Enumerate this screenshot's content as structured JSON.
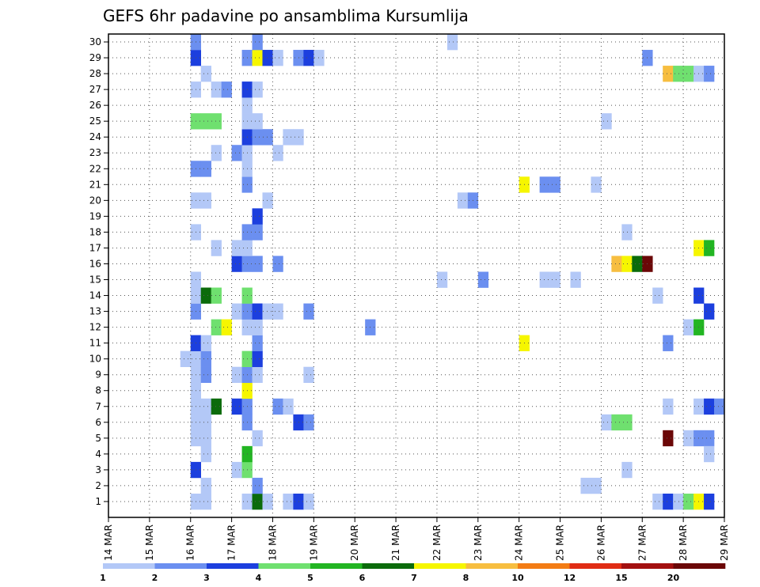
{
  "chart_data": {
    "type": "heatmap",
    "title": "GEFS 6hr padavine po ansamblima Kursumlija",
    "x_labels": [
      "14 MAR",
      "15 MAR",
      "16 MAR",
      "17 MAR",
      "18 MAR",
      "19 MAR",
      "20 MAR",
      "21 MAR",
      "22 MAR",
      "23 MAR",
      "24 MAR",
      "25 MAR",
      "26 MAR",
      "27 MAR",
      "28 MAR",
      "29 MAR"
    ],
    "y_labels": [
      "1",
      "2",
      "3",
      "4",
      "5",
      "6",
      "7",
      "8",
      "9",
      "10",
      "11",
      "12",
      "13",
      "14",
      "15",
      "16",
      "17",
      "18",
      "19",
      "20",
      "21",
      "22",
      "23",
      "24",
      "25",
      "26",
      "27",
      "28",
      "29",
      "30"
    ],
    "steps_per_day": 4,
    "grid": true,
    "legend_position": "bottom",
    "legend_labels": [
      "1",
      "2",
      "3",
      "4",
      "5",
      "6",
      "7",
      "8",
      "10",
      "12",
      "15",
      "20"
    ],
    "palette": [
      "#b3c8f7",
      "#6b8ff0",
      "#1c3fde",
      "#6fe06f",
      "#22b522",
      "#0b6b0b",
      "#f6f600",
      "#f7be40",
      "#f37c14",
      "#e02c14",
      "#a31010",
      "#6b0707"
    ],
    "cells": [
      [
        16.0,
        1,
        0
      ],
      [
        16.25,
        1,
        0
      ],
      [
        16.25,
        2,
        0
      ],
      [
        16.0,
        3,
        2
      ],
      [
        16.25,
        4,
        0
      ],
      [
        16.0,
        5,
        0
      ],
      [
        16.25,
        5,
        0
      ],
      [
        16.0,
        6,
        0
      ],
      [
        16.25,
        6,
        0
      ],
      [
        16.0,
        7,
        0
      ],
      [
        16.25,
        7,
        0
      ],
      [
        16.5,
        7,
        5
      ],
      [
        16.0,
        8,
        0
      ],
      [
        16.0,
        9,
        0
      ],
      [
        16.25,
        9,
        1
      ],
      [
        15.75,
        10,
        0
      ],
      [
        16.0,
        10,
        0
      ],
      [
        16.25,
        10,
        1
      ],
      [
        16.0,
        11,
        2
      ],
      [
        16.25,
        11,
        0
      ],
      [
        16.5,
        12,
        3
      ],
      [
        16.75,
        12,
        6
      ],
      [
        16.0,
        13,
        1
      ],
      [
        16.0,
        14,
        0
      ],
      [
        16.25,
        14,
        5
      ],
      [
        16.5,
        14,
        3
      ],
      [
        16.0,
        15,
        0
      ],
      [
        16.5,
        17,
        0
      ],
      [
        16.0,
        18,
        0
      ],
      [
        16.0,
        20,
        0
      ],
      [
        16.25,
        20,
        0
      ],
      [
        16.0,
        22,
        1
      ],
      [
        16.25,
        22,
        1
      ],
      [
        16.5,
        23,
        0
      ],
      [
        16.0,
        25,
        3
      ],
      [
        16.25,
        25,
        3
      ],
      [
        16.5,
        25,
        3
      ],
      [
        16.0,
        27,
        0
      ],
      [
        16.5,
        27,
        0
      ],
      [
        16.75,
        27,
        1
      ],
      [
        16.25,
        28,
        0
      ],
      [
        16.0,
        29,
        2
      ],
      [
        16.0,
        30,
        1
      ],
      [
        17.25,
        1,
        0
      ],
      [
        17.5,
        1,
        5
      ],
      [
        17.75,
        1,
        0
      ],
      [
        17.5,
        2,
        1
      ],
      [
        17.0,
        3,
        0
      ],
      [
        17.25,
        3,
        3
      ],
      [
        17.25,
        4,
        4
      ],
      [
        17.5,
        5,
        0
      ],
      [
        17.25,
        6,
        1
      ],
      [
        17.0,
        7,
        2
      ],
      [
        17.25,
        7,
        1
      ],
      [
        17.25,
        8,
        6
      ],
      [
        17.0,
        9,
        0
      ],
      [
        17.25,
        9,
        1
      ],
      [
        17.5,
        9,
        0
      ],
      [
        17.25,
        10,
        3
      ],
      [
        17.5,
        10,
        2
      ],
      [
        17.5,
        11,
        1
      ],
      [
        17.25,
        12,
        0
      ],
      [
        17.5,
        12,
        0
      ],
      [
        17.0,
        13,
        0
      ],
      [
        17.25,
        13,
        1
      ],
      [
        17.5,
        13,
        2
      ],
      [
        17.75,
        13,
        0
      ],
      [
        18.0,
        13,
        0
      ],
      [
        17.25,
        14,
        3
      ],
      [
        17.0,
        16,
        2
      ],
      [
        17.25,
        16,
        1
      ],
      [
        17.5,
        16,
        1
      ],
      [
        17.0,
        17,
        0
      ],
      [
        17.25,
        17,
        0
      ],
      [
        17.25,
        18,
        1
      ],
      [
        17.5,
        18,
        1
      ],
      [
        17.5,
        19,
        2
      ],
      [
        17.75,
        20,
        0
      ],
      [
        17.25,
        21,
        1
      ],
      [
        17.25,
        22,
        0
      ],
      [
        17.0,
        23,
        1
      ],
      [
        17.25,
        23,
        0
      ],
      [
        17.25,
        24,
        2
      ],
      [
        17.5,
        24,
        1
      ],
      [
        17.75,
        24,
        1
      ],
      [
        17.25,
        25,
        0
      ],
      [
        17.5,
        25,
        0
      ],
      [
        17.25,
        26,
        0
      ],
      [
        17.25,
        27,
        2
      ],
      [
        17.5,
        27,
        0
      ],
      [
        17.25,
        29,
        1
      ],
      [
        17.5,
        29,
        6
      ],
      [
        17.75,
        29,
        2
      ],
      [
        17.5,
        30,
        1
      ],
      [
        18.0,
        7,
        1
      ],
      [
        18.25,
        7,
        0
      ],
      [
        18.5,
        6,
        2
      ],
      [
        18.75,
        6,
        1
      ],
      [
        18.75,
        9,
        0
      ],
      [
        18.75,
        13,
        1
      ],
      [
        18.0,
        16,
        1
      ],
      [
        18.0,
        23,
        0
      ],
      [
        18.25,
        24,
        0
      ],
      [
        18.5,
        24,
        0
      ],
      [
        18.0,
        29,
        0
      ],
      [
        18.5,
        29,
        1
      ],
      [
        18.75,
        29,
        2
      ],
      [
        19.0,
        29,
        0
      ],
      [
        18.25,
        1,
        0
      ],
      [
        18.5,
        1,
        2
      ],
      [
        18.75,
        1,
        0
      ],
      [
        20.25,
        12,
        1
      ],
      [
        22.5,
        20,
        0
      ],
      [
        22.75,
        20,
        1
      ],
      [
        22.0,
        15,
        0
      ],
      [
        23.0,
        15,
        1
      ],
      [
        22.25,
        30,
        0
      ],
      [
        24.0,
        11,
        6
      ],
      [
        24.0,
        21,
        6
      ],
      [
        24.5,
        21,
        1
      ],
      [
        24.75,
        21,
        1
      ],
      [
        24.5,
        15,
        0
      ],
      [
        24.75,
        15,
        0
      ],
      [
        25.25,
        15,
        0
      ],
      [
        25.5,
        2,
        0
      ],
      [
        25.75,
        2,
        0
      ],
      [
        25.75,
        21,
        0
      ],
      [
        26.0,
        6,
        0
      ],
      [
        26.25,
        6,
        3
      ],
      [
        26.5,
        6,
        3
      ],
      [
        26.0,
        25,
        0
      ],
      [
        26.5,
        3,
        0
      ],
      [
        26.5,
        18,
        0
      ],
      [
        26.25,
        16,
        7
      ],
      [
        26.5,
        16,
        6
      ],
      [
        26.75,
        16,
        5
      ],
      [
        27.0,
        16,
        11
      ],
      [
        27.0,
        29,
        1
      ],
      [
        27.25,
        1,
        0
      ],
      [
        27.25,
        14,
        0
      ],
      [
        27.5,
        1,
        2
      ],
      [
        27.5,
        5,
        11
      ],
      [
        27.5,
        7,
        0
      ],
      [
        27.5,
        11,
        1
      ],
      [
        27.75,
        1,
        0
      ],
      [
        28.0,
        1,
        3
      ],
      [
        28.25,
        1,
        6
      ],
      [
        28.5,
        1,
        2
      ],
      [
        28.0,
        5,
        0
      ],
      [
        28.25,
        5,
        1
      ],
      [
        28.5,
        5,
        1
      ],
      [
        28.5,
        4,
        0
      ],
      [
        28.25,
        7,
        0
      ],
      [
        28.5,
        7,
        2
      ],
      [
        28.75,
        7,
        1
      ],
      [
        28.0,
        12,
        0
      ],
      [
        28.25,
        12,
        4
      ],
      [
        28.5,
        13,
        2
      ],
      [
        28.25,
        14,
        2
      ],
      [
        28.25,
        17,
        6
      ],
      [
        28.5,
        17,
        4
      ],
      [
        27.5,
        28,
        7
      ],
      [
        27.75,
        28,
        3
      ],
      [
        28.0,
        28,
        3
      ],
      [
        28.25,
        28,
        0
      ],
      [
        28.5,
        28,
        1
      ]
    ]
  }
}
